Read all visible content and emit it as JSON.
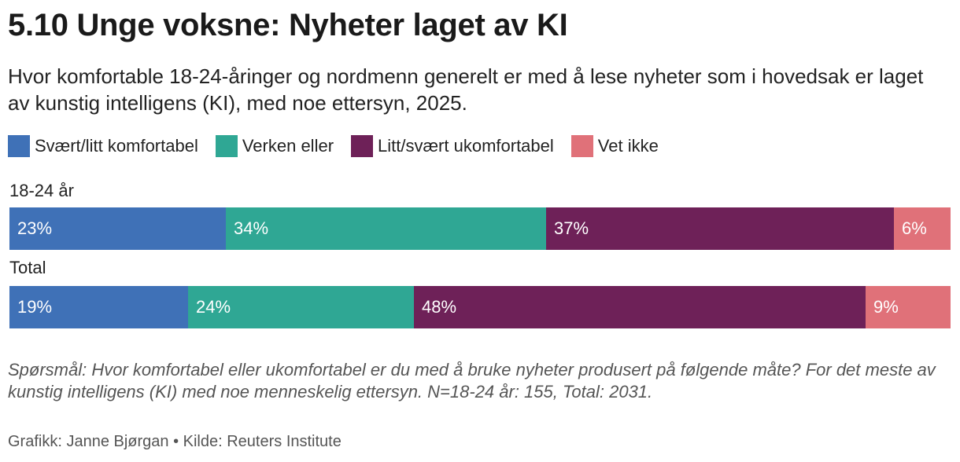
{
  "chart_data": {
    "type": "bar",
    "orientation": "horizontal",
    "stacked": true,
    "title": "5.10 Unge voksne: Nyheter laget av KI",
    "subtitle": "Hvor komfortable 18-24-åringer og nordmenn generelt er med å lese nyheter som i hovedsak er laget av kunstig intelligens (KI), med noe ettersyn, 2025.",
    "legend_position": "top-left",
    "grid": false,
    "xlim": [
      0,
      100
    ],
    "categories": [
      "18-24 år",
      "Total"
    ],
    "series": [
      {
        "name": "Svært/litt komfortabel",
        "color": "#3f71b7",
        "values": [
          23,
          19
        ],
        "labels": [
          "23%",
          "19%"
        ]
      },
      {
        "name": "Verken eller",
        "color": "#2fa794",
        "values": [
          34,
          24
        ],
        "labels": [
          "34%",
          "24%"
        ]
      },
      {
        "name": "Litt/svært ukomfortabel",
        "color": "#6e2158",
        "values": [
          37,
          48
        ],
        "labels": [
          "37%",
          "48%"
        ]
      },
      {
        "name": "Vet ikke",
        "color": "#e07179",
        "values": [
          6,
          9
        ],
        "labels": [
          "6%",
          "9%"
        ]
      }
    ],
    "note": "Spørsmål: Hvor komfortabel eller ukomfortabel er du med å bruke nyheter produsert på følgende måte? For det meste av kunstig intelligens (KI) med noe menneskelig ettersyn. N=18-24 år: 155, Total: 2031.",
    "credit": "Grafikk: Janne Bjørgan • Kilde: Reuters Institute"
  }
}
